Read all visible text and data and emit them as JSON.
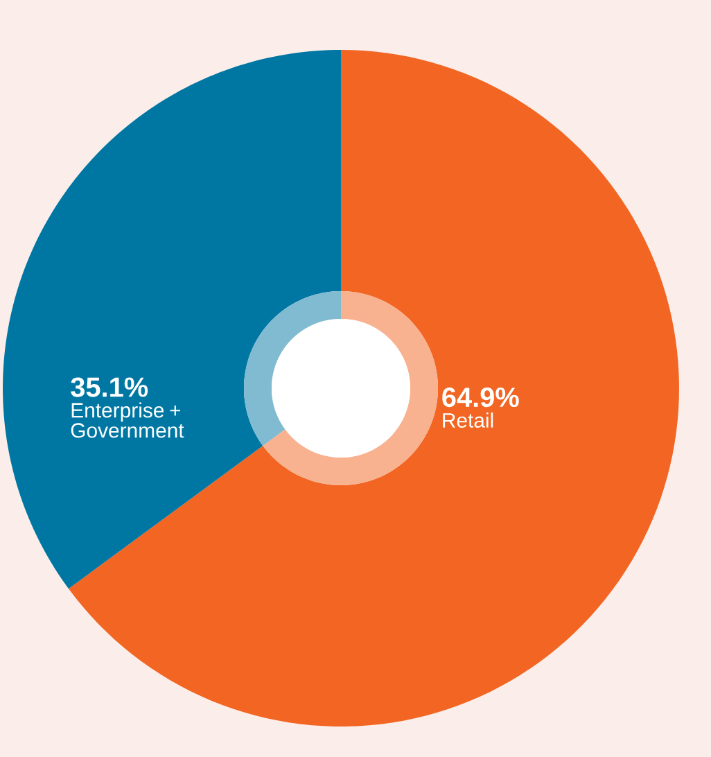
{
  "chart_data": {
    "type": "donut",
    "categories": [
      "Retail",
      "Enterprise + Government"
    ],
    "series": [
      {
        "values": [
          64.9,
          35.1
        ],
        "colors": [
          "#f26522",
          "#0077a3"
        ],
        "value_labels": [
          "64.9%",
          "35.1%"
        ]
      },
      {
        "values": [
          64.9,
          35.1
        ],
        "colors": [
          "#f8b290",
          "#80bbd1"
        ]
      }
    ]
  }
}
